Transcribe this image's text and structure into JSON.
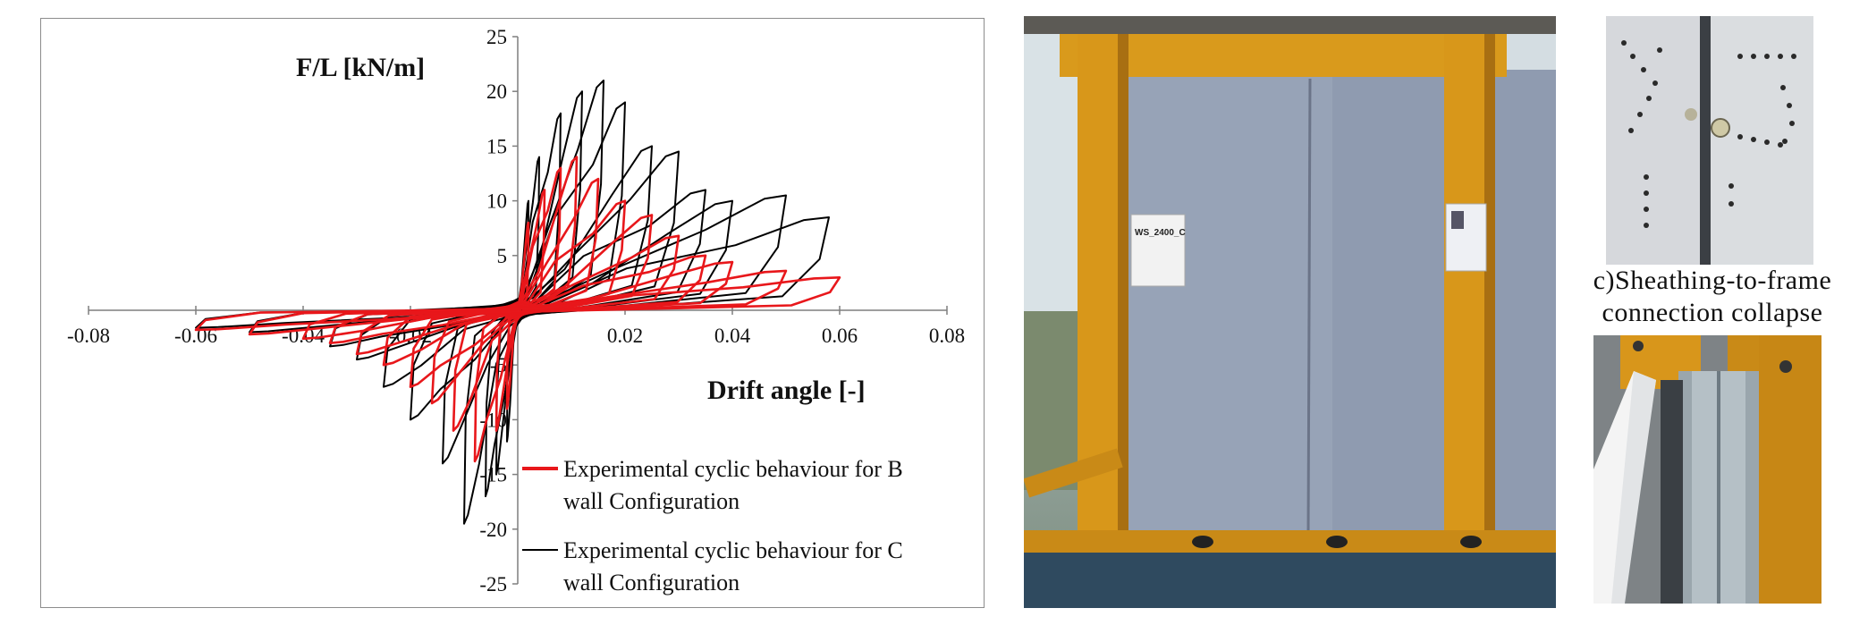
{
  "chart_data": {
    "type": "line",
    "xlabel": "Drift angle [-]",
    "ylabel": "F/L [kN/m]",
    "xlim": [
      -0.08,
      0.08
    ],
    "ylim": [
      -25,
      25
    ],
    "xticks": [
      "-0.08",
      "-0.06",
      "-0.04",
      "-0.02",
      "0.02",
      "0.04",
      "0.06",
      "0.08"
    ],
    "yticks": [
      "25",
      "20",
      "15",
      "10",
      "5",
      "-5",
      "-10",
      "-15",
      "-20",
      "-25"
    ],
    "grid": false,
    "legend_position": "bottom-right",
    "series": [
      {
        "name": "Experimental cyclic behaviour for B wall Configuration",
        "name_lines": [
          "Experimental cyclic behaviour for B",
          "wall Configuration"
        ],
        "color": "#e8171b",
        "envelope": {
          "pos_drift": [
            0.002,
            0.005,
            0.008,
            0.011,
            0.015,
            0.02,
            0.025,
            0.03,
            0.035,
            0.04,
            0.05,
            0.06
          ],
          "pos_force": [
            8,
            11,
            13,
            14,
            12,
            10,
            8.7,
            6.8,
            5,
            4.4,
            3.6,
            3.0
          ],
          "neg_drift": [
            -0.002,
            -0.004,
            -0.008,
            -0.012,
            -0.016,
            -0.02,
            -0.025,
            -0.03,
            -0.035,
            -0.04,
            -0.05,
            -0.06
          ],
          "neg_force": [
            -9,
            -11,
            -13.8,
            -11,
            -8.5,
            -7,
            -5,
            -4,
            -3,
            -2.6,
            -2.2,
            -1.8
          ]
        }
      },
      {
        "name": "Experimental cyclic behaviour for C wall Configuration",
        "name_lines": [
          "Experimental cyclic behaviour for C",
          "wall Configuration"
        ],
        "color": "#000000",
        "envelope": {
          "pos_drift": [
            0.002,
            0.004,
            0.008,
            0.012,
            0.016,
            0.02,
            0.025,
            0.03,
            0.035,
            0.04,
            0.05,
            0.058
          ],
          "pos_force": [
            10,
            14,
            18,
            20,
            21,
            19,
            15,
            14.5,
            11,
            10,
            10.5,
            8.5
          ],
          "neg_drift": [
            -0.002,
            -0.004,
            -0.006,
            -0.01,
            -0.014,
            -0.02,
            -0.025,
            -0.03,
            -0.035,
            -0.04,
            -0.05,
            -0.06
          ],
          "neg_force": [
            -12,
            -15,
            -17,
            -19.5,
            -14,
            -10,
            -7,
            -4.5,
            -3.3,
            -2.6,
            -2.0,
            -1.6
          ]
        }
      }
    ]
  },
  "photos": {
    "wall_label": "WS_2400_C"
  },
  "caption": {
    "line1": "c)Sheathing-to-frame",
    "line2": "connection collapse"
  }
}
